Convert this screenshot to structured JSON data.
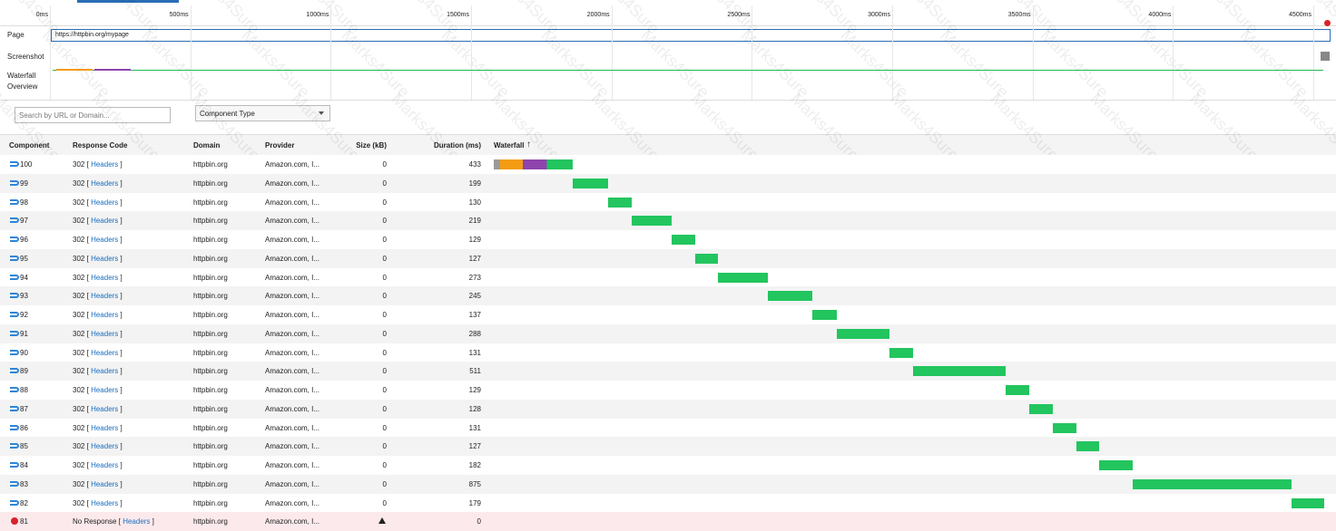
{
  "timeline": {
    "ticks": [
      "0ms",
      "500ms",
      "1000ms",
      "1500ms",
      "2000ms",
      "2500ms",
      "3000ms",
      "3500ms",
      "4000ms",
      "4500ms"
    ]
  },
  "rows": {
    "page": {
      "label": "Page",
      "url": "https://httpbin.org/mypage"
    },
    "screenshot": "Screenshot",
    "overview": "Waterfall Overview"
  },
  "filters": {
    "search_placeholder": "Search by URL or Domain...",
    "component_type": "Component Type"
  },
  "table": {
    "columns": [
      "Component",
      "Response Code",
      "Domain",
      "Provider",
      "Size (kB)",
      "Duration (ms)",
      "Waterfall"
    ],
    "rows": [
      {
        "component": "100",
        "status": "302",
        "open": "[",
        "link": "Headers",
        "close": "]",
        "domain": "httpbin.org",
        "provider": "Amazon.com, I...",
        "size": 0,
        "duration": 433
      },
      {
        "component": "99",
        "status": "302",
        "open": "[",
        "link": "Headers",
        "close": "]",
        "domain": "httpbin.org",
        "provider": "Amazon.com, I...",
        "size": 0,
        "duration": 199
      },
      {
        "component": "98",
        "status": "302",
        "open": "[",
        "link": "Headers",
        "close": "]",
        "domain": "httpbin.org",
        "provider": "Amazon.com, I...",
        "size": 0,
        "duration": 130
      },
      {
        "component": "97",
        "status": "302",
        "open": "[",
        "link": "Headers",
        "close": "]",
        "domain": "httpbin.org",
        "provider": "Amazon.com, I...",
        "size": 0,
        "duration": 219
      },
      {
        "component": "96",
        "status": "302",
        "open": "[",
        "link": "Headers",
        "close": "]",
        "domain": "httpbin.org",
        "provider": "Amazon.com, I...",
        "size": 0,
        "duration": 129
      },
      {
        "component": "95",
        "status": "302",
        "open": "[",
        "link": "Headers",
        "close": "]",
        "domain": "httpbin.org",
        "provider": "Amazon.com, I...",
        "size": 0,
        "duration": 127
      },
      {
        "component": "94",
        "status": "302",
        "open": "[",
        "link": "Headers",
        "close": "]",
        "domain": "httpbin.org",
        "provider": "Amazon.com, I...",
        "size": 0,
        "duration": 273
      },
      {
        "component": "93",
        "status": "302",
        "open": "[",
        "link": "Headers",
        "close": "]",
        "domain": "httpbin.org",
        "provider": "Amazon.com, I...",
        "size": 0,
        "duration": 245
      },
      {
        "component": "92",
        "status": "302",
        "open": "[",
        "link": "Headers",
        "close": "]",
        "domain": "httpbin.org",
        "provider": "Amazon.com, I...",
        "size": 0,
        "duration": 137
      },
      {
        "component": "91",
        "status": "302",
        "open": "[",
        "link": "Headers",
        "close": "]",
        "domain": "httpbin.org",
        "provider": "Amazon.com, I...",
        "size": 0,
        "duration": 288
      },
      {
        "component": "90",
        "status": "302",
        "open": "[",
        "link": "Headers",
        "close": "]",
        "domain": "httpbin.org",
        "provider": "Amazon.com, I...",
        "size": 0,
        "duration": 131
      },
      {
        "component": "89",
        "status": "302",
        "open": "[",
        "link": "Headers",
        "close": "]",
        "domain": "httpbin.org",
        "provider": "Amazon.com, I...",
        "size": 0,
        "duration": 511
      },
      {
        "component": "88",
        "status": "302",
        "open": "[",
        "link": "Headers",
        "close": "]",
        "domain": "httpbin.org",
        "provider": "Amazon.com, I...",
        "size": 0,
        "duration": 129
      },
      {
        "component": "87",
        "status": "302",
        "open": "[",
        "link": "Headers",
        "close": "]",
        "domain": "httpbin.org",
        "provider": "Amazon.com, I...",
        "size": 0,
        "duration": 128
      },
      {
        "component": "86",
        "status": "302",
        "open": "[",
        "link": "Headers",
        "close": "]",
        "domain": "httpbin.org",
        "provider": "Amazon.com, I...",
        "size": 0,
        "duration": 131
      },
      {
        "component": "85",
        "status": "302",
        "open": "[",
        "link": "Headers",
        "close": "]",
        "domain": "httpbin.org",
        "provider": "Amazon.com, I...",
        "size": 0,
        "duration": 127
      },
      {
        "component": "84",
        "status": "302",
        "open": "[",
        "link": "Headers",
        "close": "]",
        "domain": "httpbin.org",
        "provider": "Amazon.com, I...",
        "size": 0,
        "duration": 182
      },
      {
        "component": "83",
        "status": "302",
        "open": "[",
        "link": "Headers",
        "close": "]",
        "domain": "httpbin.org",
        "provider": "Amazon.com, I...",
        "size": 0,
        "duration": 875
      },
      {
        "component": "82",
        "status": "302",
        "open": "[",
        "link": "Headers",
        "close": "]",
        "domain": "httpbin.org",
        "provider": "Amazon.com, I...",
        "size": 0,
        "duration": 179
      },
      {
        "component": "81",
        "status": "No Response",
        "open": "[",
        "link": "Headers",
        "close": "]",
        "domain": "httpbin.org",
        "provider": "Amazon.com, I...",
        "duration": 0,
        "error": true
      }
    ]
  },
  "watermark": "Marks4Sure"
}
